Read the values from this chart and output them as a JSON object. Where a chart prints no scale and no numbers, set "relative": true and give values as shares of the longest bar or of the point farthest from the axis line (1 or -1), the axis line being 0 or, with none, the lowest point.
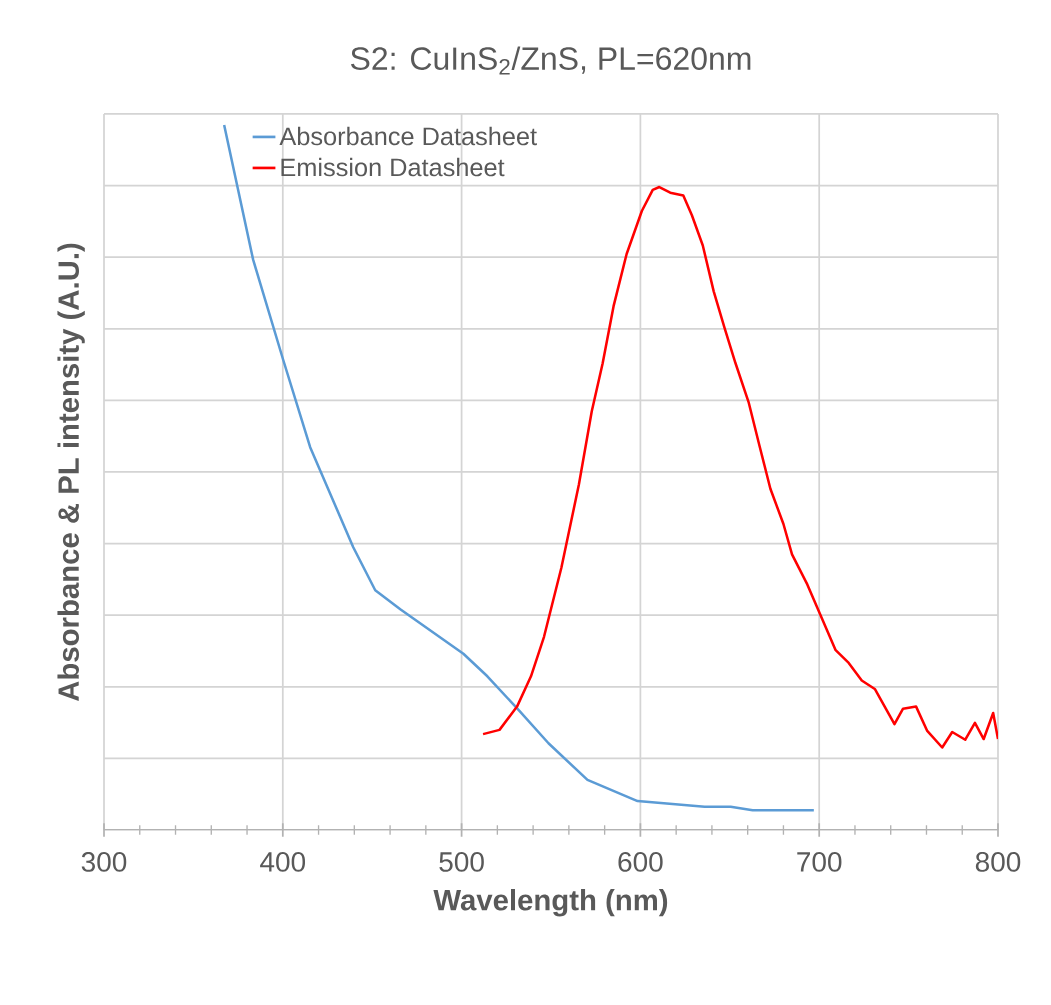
{
  "chart_data": {
    "type": "line",
    "title": "S2: CuInS$_{2}$/ZnS, PL=620nm",
    "xlabel": "Wavelength (nm)",
    "ylabel": "Absorbance & PL intensity (A.U.)",
    "relative": true,
    "xlim": [
      300,
      800
    ],
    "xticks": [
      300,
      400,
      500,
      600,
      700,
      800
    ],
    "grid": true,
    "legend": "top left",
    "marker": "none",
    "line_style": "solid",
    "series": [
      {
        "name": "Absorbance Datasheet",
        "color": "#5b9bd5",
        "x": [
          367.2,
          383.4,
          400.2,
          415.3,
          439.4,
          451.7,
          465.7,
          501.0,
          514.4,
          531.2,
          548.6,
          570.4,
          598.4,
          635.9,
          650.5,
          662.8,
          697.0
        ],
        "values": [
          1.0,
          0.809,
          0.667,
          0.543,
          0.401,
          0.34,
          0.313,
          0.25,
          0.218,
          0.172,
          0.123,
          0.071,
          0.041,
          0.033,
          0.033,
          0.028,
          0.028
        ]
      },
      {
        "name": "Emission Datasheet",
        "color": "#ff0000",
        "x": [
          512.0,
          521.2,
          531.0,
          538.8,
          546.1,
          555.8,
          565.6,
          572.8,
          578.9,
          585.0,
          592.3,
          600.8,
          606.9,
          610.6,
          616.7,
          624.0,
          628.8,
          634.9,
          641.0,
          647.1,
          653.2,
          660.5,
          666.6,
          672.7,
          680.0,
          684.8,
          693.4,
          700.7,
          709.2,
          716.5,
          723.8,
          731.1,
          742.1,
          746.9,
          754.2,
          760.3,
          768.8,
          774.4,
          781.7,
          787.1,
          792.0,
          797.3,
          800.0
        ],
        "values": [
          0.136,
          0.142,
          0.175,
          0.218,
          0.274,
          0.372,
          0.49,
          0.594,
          0.662,
          0.743,
          0.817,
          0.878,
          0.908,
          0.912,
          0.904,
          0.9,
          0.872,
          0.829,
          0.764,
          0.712,
          0.662,
          0.607,
          0.545,
          0.484,
          0.434,
          0.391,
          0.348,
          0.305,
          0.255,
          0.237,
          0.212,
          0.2,
          0.15,
          0.172,
          0.175,
          0.141,
          0.117,
          0.139,
          0.128,
          0.152,
          0.129,
          0.166,
          0.129
        ]
      }
    ]
  }
}
